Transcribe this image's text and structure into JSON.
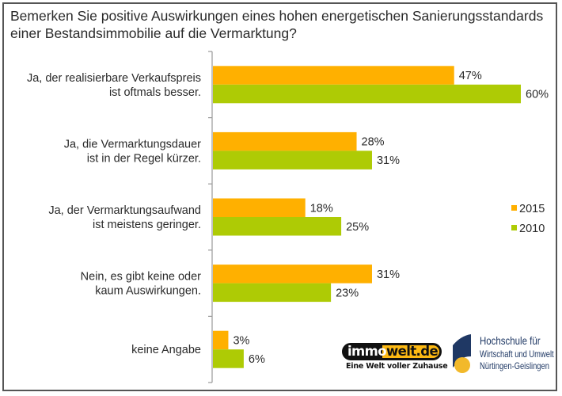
{
  "chart_data": {
    "type": "bar",
    "orientation": "horizontal",
    "title": "Bemerken Sie positive Auswirkungen eines hohen energetischen Sanierungsstandards einer Bestandsimmobilie auf die Vermarktung?",
    "title_lines": [
      "Bemerken Sie positive Auswirkungen eines hohen energetischen Sanierungsstandards",
      "einer Bestandsimmobilie auf die Vermarktung?"
    ],
    "categories": [
      [
        "Ja, der realisierbare Verkaufspreis",
        "ist oftmals besser."
      ],
      [
        "Ja, die Vermarktungsdauer",
        "ist in der Regel kürzer."
      ],
      [
        "Ja, der Vermarktungsaufwand",
        "ist meistens geringer."
      ],
      [
        "Nein, es gibt keine oder",
        "kaum Auswirkungen."
      ],
      [
        "keine Angabe"
      ]
    ],
    "series": [
      {
        "name": "2015",
        "color": "#FFB000",
        "values": [
          47,
          28,
          18,
          31,
          3
        ],
        "labels": [
          "47%",
          "28%",
          "18%",
          "31%",
          "3%"
        ]
      },
      {
        "name": "2010",
        "color": "#AECB05",
        "values": [
          60,
          31,
          25,
          23,
          6
        ],
        "labels": [
          "60%",
          "31%",
          "25%",
          "23%",
          "6%"
        ]
      }
    ],
    "unit": "%",
    "xlabel": "",
    "ylabel": "",
    "xlim": [
      0,
      60
    ],
    "grid": false,
    "legend": {
      "position": "right",
      "entries": [
        "2015",
        "2010"
      ]
    },
    "data_labels": true
  },
  "logos": {
    "immowelt": {
      "left": "immo",
      "right": "welt.de",
      "tagline": "Eine Welt voller Zuhause"
    },
    "hochschule": {
      "line1": "Hochschule für",
      "line2": "Wirtschaft und Umwelt",
      "line3": "Nürtingen-Geislingen"
    }
  }
}
